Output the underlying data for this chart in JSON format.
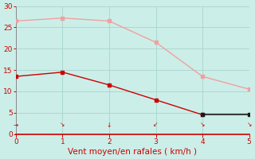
{
  "x": [
    0,
    1,
    2,
    3,
    4,
    5
  ],
  "line1_y": [
    26.5,
    27.2,
    26.5,
    21.5,
    13.5,
    10.5
  ],
  "line2_y": [
    13.5,
    14.5,
    11.5,
    8.0,
    4.5,
    4.5
  ],
  "line1_color": "#f0a0a0",
  "line2_color": "#cc0000",
  "line2_end_color": "#1a1a1a",
  "background_color": "#cceee8",
  "grid_color": "#aad8d0",
  "spine_color": "#888888",
  "bottom_spine_color": "#cc0000",
  "xlabel": "Vent moyen/en rafales ( km/h )",
  "xlabel_color": "#cc0000",
  "tick_color": "#cc0000",
  "ylim": [
    0,
    30
  ],
  "xlim": [
    0,
    5
  ],
  "yticks": [
    0,
    5,
    10,
    15,
    20,
    25,
    30
  ],
  "xticks": [
    0,
    1,
    2,
    3,
    4,
    5
  ],
  "marker_size": 3,
  "xlabel_fontsize": 7.5
}
